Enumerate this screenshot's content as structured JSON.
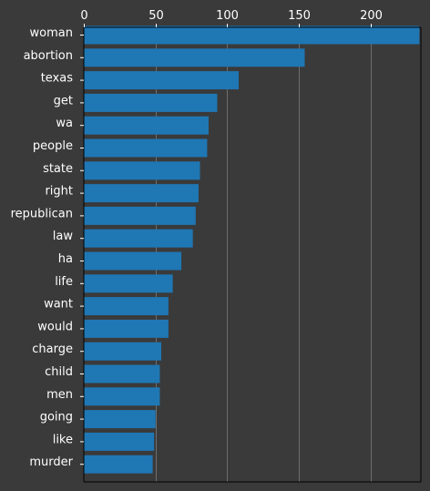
{
  "chart_data": {
    "type": "bar",
    "orientation": "horizontal",
    "categories": [
      "woman",
      "abortion",
      "texas",
      "get",
      "wa",
      "people",
      "state",
      "right",
      "republican",
      "law",
      "ha",
      "life",
      "want",
      "would",
      "charge",
      "child",
      "men",
      "going",
      "like",
      "murder"
    ],
    "values": [
      234,
      154,
      108,
      93,
      87,
      86,
      81,
      80,
      78,
      76,
      68,
      62,
      59,
      59,
      54,
      53,
      53,
      50,
      49,
      48
    ],
    "x_ticks": [
      0,
      50,
      100,
      150,
      200
    ],
    "xlim": [
      0,
      235
    ],
    "x_axis_position": "top",
    "grid": "vertical",
    "colors": {
      "background": "#3a3a3a",
      "bar": "#1f77b4",
      "text": "#ffffff",
      "axis": "#000000",
      "grid": "#6e6e6e"
    }
  }
}
